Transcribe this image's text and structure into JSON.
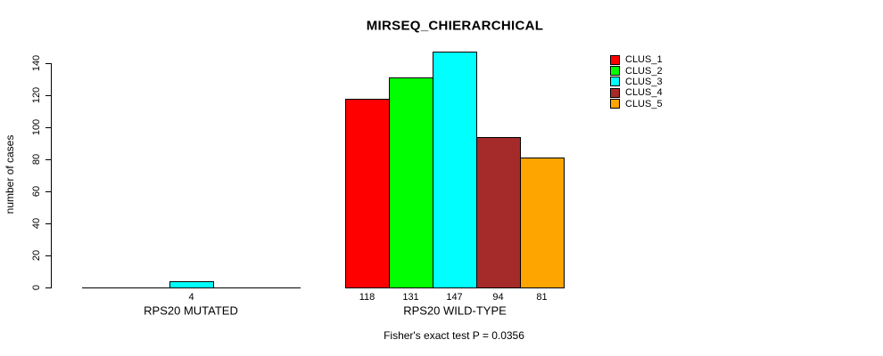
{
  "title": "MIRSEQ_CHIERARCHICAL",
  "annotation": "Fisher's exact test P = 0.0356",
  "y_axis": {
    "label": "number of cases",
    "ticks": [
      0,
      20,
      40,
      60,
      80,
      100,
      120,
      140
    ]
  },
  "legend": {
    "items": [
      {
        "label": "CLUS_1",
        "color": "#ff0000"
      },
      {
        "label": "CLUS_2",
        "color": "#00ff00"
      },
      {
        "label": "CLUS_3",
        "color": "#00ffff"
      },
      {
        "label": "CLUS_4",
        "color": "#a52a2a"
      },
      {
        "label": "CLUS_5",
        "color": "#ffa500"
      }
    ]
  },
  "chart_data": {
    "type": "bar",
    "title": "MIRSEQ_CHIERARCHICAL",
    "xlabel": "",
    "ylabel": "number of cases",
    "ylim": [
      0,
      140
    ],
    "grid": false,
    "legend_position": "topright",
    "series": [
      "CLUS_1",
      "CLUS_2",
      "CLUS_3",
      "CLUS_4",
      "CLUS_5"
    ],
    "colors": [
      "#ff0000",
      "#00ff00",
      "#00ffff",
      "#a52a2a",
      "#ffa500"
    ],
    "groups": [
      {
        "label": "RPS20 MUTATED",
        "values": [
          0,
          0,
          4,
          0,
          0
        ]
      },
      {
        "label": "RPS20 WILD-TYPE",
        "values": [
          118,
          131,
          147,
          94,
          81
        ]
      }
    ],
    "annotation": "Fisher's exact test P = 0.0356"
  }
}
